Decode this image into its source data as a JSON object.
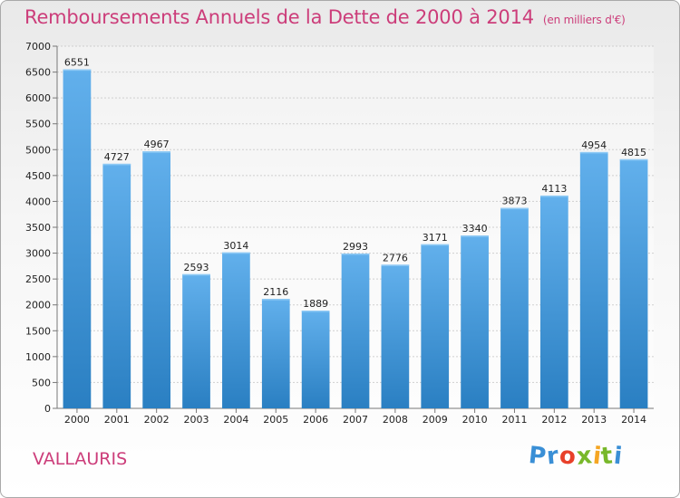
{
  "title": {
    "main": "Remboursements Annuels de la Dette de 2000 à 2014",
    "unit": "(en milliers d'€)"
  },
  "commune": "VALLAURIS",
  "logo": {
    "letters": [
      "P",
      "r",
      "o",
      "x",
      "i",
      "t",
      "i"
    ],
    "colors": [
      "#3a8fd6",
      "#3a8fd6",
      "#e8402a",
      "#78b82a",
      "#f5a623",
      "#78b82a",
      "#3a8fd6"
    ]
  },
  "colors": {
    "bar_top": "#62b0ec",
    "bar_bottom": "#2a7fc2",
    "title": "#cc3d7a",
    "grid": "#cfcfcf"
  },
  "chart_data": {
    "type": "bar",
    "categories": [
      "2000",
      "2001",
      "2002",
      "2003",
      "2004",
      "2005",
      "2006",
      "2007",
      "2008",
      "2009",
      "2010",
      "2011",
      "2012",
      "2013",
      "2014"
    ],
    "values": [
      6551,
      4727,
      4967,
      2593,
      3014,
      2116,
      1889,
      2993,
      2776,
      3171,
      3340,
      3873,
      4113,
      4954,
      4815
    ],
    "y_ticks": [
      "0",
      "500",
      "1000",
      "1500",
      "2000",
      "2500",
      "3000",
      "3500",
      "4000",
      "4500",
      "5000",
      "5500",
      "6000",
      "6500",
      "7000"
    ],
    "ylim": [
      0,
      7000
    ],
    "grid": true,
    "data_labels": true
  }
}
